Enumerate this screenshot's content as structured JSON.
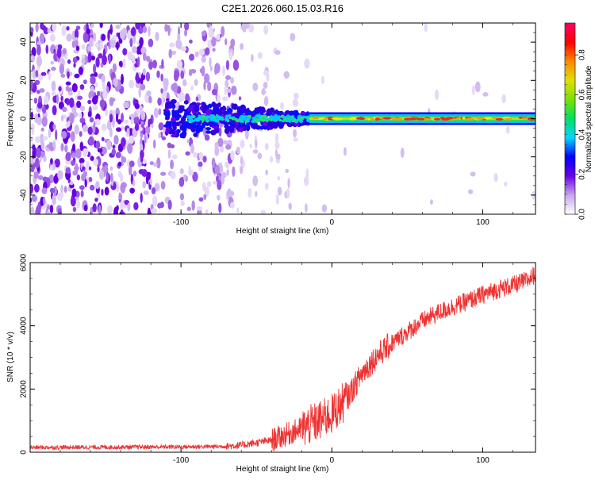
{
  "page": {
    "title": "C2E1.2026.060.15.03.R16"
  },
  "colors": {
    "snr_line": "#ee3333",
    "axis": "#000000"
  },
  "chart_data": [
    {
      "type": "heatmap",
      "name": "spectrogram",
      "title": "C2E1.2026.060.15.03.R16",
      "xlabel": "Height of straight line (km)",
      "ylabel": "Frequency (Hz)",
      "xlim": [
        -200,
        135
      ],
      "ylim": [
        -50,
        50
      ],
      "x_ticks": [
        -100,
        0,
        100
      ],
      "x_tick_labels": [
        "-100",
        "0",
        "100"
      ],
      "y_ticks": [
        -40,
        -20,
        0,
        20,
        40
      ],
      "y_tick_labels": [
        "-40",
        "-20",
        "0",
        "20",
        "40"
      ],
      "signal": {
        "frequency_hz": 0,
        "onset_height_km": -110,
        "strong_from_km": -15,
        "description": "narrow tone near 0 Hz over noise"
      },
      "colorbar": {
        "label": "Normalized spectral amplitude",
        "range": [
          0,
          0.96
        ],
        "ticks": [
          0.0,
          0.2,
          0.4,
          0.6,
          0.8
        ],
        "tick_labels": [
          "0.0",
          "0.2",
          "0.4",
          "0.6",
          "0.8"
        ],
        "stops": [
          "#ffffff",
          "#c8a6ee",
          "#6a00e8",
          "#0000ff",
          "#00d8ff",
          "#00e060",
          "#7be000",
          "#e0e000",
          "#ff8800",
          "#ff0000",
          "#ff0066"
        ]
      }
    },
    {
      "type": "line",
      "name": "snr",
      "xlabel": "Height of straight line (km)",
      "ylabel": "SNR (10 * v/v)",
      "xlim": [
        -200,
        135
      ],
      "ylim": [
        0,
        6000
      ],
      "x_ticks": [
        -100,
        0,
        100
      ],
      "x_tick_labels": [
        "-100",
        "0",
        "100"
      ],
      "y_ticks": [
        0,
        2000,
        4000,
        6000
      ],
      "y_tick_labels": [
        "0",
        "2000",
        "4000",
        "6000"
      ],
      "series": [
        {
          "name": "SNR",
          "x": [
            -200,
            -150,
            -100,
            -75,
            -60,
            -40,
            -30,
            -20,
            -10,
            0,
            10,
            20,
            30,
            40,
            50,
            60,
            70,
            80,
            90,
            100,
            110,
            120,
            130,
            135
          ],
          "values": [
            150,
            160,
            170,
            180,
            220,
            380,
            560,
            750,
            950,
            1200,
            1700,
            2500,
            3050,
            3450,
            3800,
            4150,
            4400,
            4600,
            4780,
            4980,
            5150,
            5280,
            5450,
            5650
          ]
        }
      ]
    }
  ]
}
